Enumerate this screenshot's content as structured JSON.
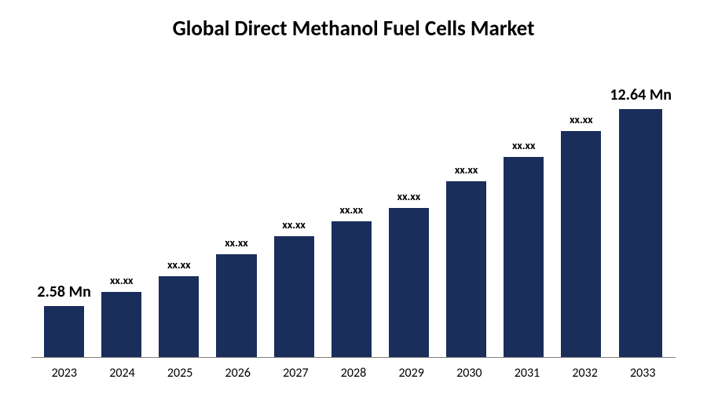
{
  "chart": {
    "type": "bar",
    "title": "Global Direct Methanol Fuel Cells Market",
    "title_fontsize": 27,
    "title_color": "#000000",
    "background_color": "#ffffff",
    "axis_color": "#808080",
    "categories": [
      "2023",
      "2024",
      "2025",
      "2026",
      "2027",
      "2028",
      "2029",
      "2030",
      "2031",
      "2032",
      "2033"
    ],
    "values": [
      2.58,
      3.3,
      4.1,
      5.25,
      6.15,
      6.9,
      7.6,
      8.95,
      10.2,
      11.5,
      12.64
    ],
    "labels": [
      "2.58 Mn",
      "xx.xx",
      "xx.xx",
      "xx.xx",
      "xx.xx",
      "xx.xx",
      "xx.xx",
      "xx.xx",
      "xx.xx",
      "xx.xx",
      "12.64 Mn"
    ],
    "label_emphasis": [
      true,
      false,
      false,
      false,
      false,
      false,
      false,
      false,
      false,
      false,
      true
    ],
    "bar_color": "#1a2e5c",
    "bar_width": 0.7,
    "ymax": 12.64,
    "label_fontsize_small": 14,
    "label_fontsize_large": 20,
    "xaxis_fontsize": 16,
    "xaxis_color": "#000000"
  }
}
